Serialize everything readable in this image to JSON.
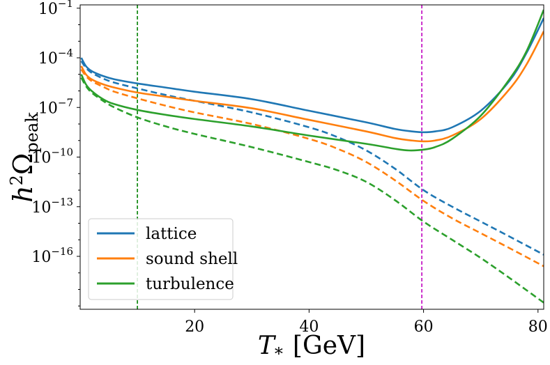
{
  "chart_data": {
    "type": "line",
    "title": "",
    "xlabel": {
      "main": "T",
      "sub": "*",
      "unit": "[GeV]"
    },
    "ylabel": {
      "main": "h",
      "sup": "2",
      "greek": "Ω",
      "sub": "peak"
    },
    "xlim": [
      0,
      81
    ],
    "ylog_range": [
      -19.2,
      -0.8
    ],
    "xticks": [
      20,
      40,
      60,
      80
    ],
    "xtick_labels": [
      "20",
      "40",
      "60",
      "80"
    ],
    "yticks": [
      {
        "base": "10",
        "exp": "−1",
        "value": -1
      },
      {
        "base": "10",
        "exp": "−4",
        "value": -4
      },
      {
        "base": "10",
        "exp": "−7",
        "value": -7
      },
      {
        "base": "10",
        "exp": "−10",
        "value": -10
      },
      {
        "base": "10",
        "exp": "−13",
        "value": -13
      },
      {
        "base": "10",
        "exp": "−16",
        "value": -16
      }
    ],
    "vlines": [
      {
        "x": 10,
        "color": "#008000",
        "style": "dashed"
      },
      {
        "x": 59.7,
        "color": "#bf00bf",
        "style": "dashed"
      }
    ],
    "legend": {
      "position": "bottom-left",
      "entries": [
        "lattice",
        "sound shell",
        "turbulence"
      ]
    },
    "series": [
      {
        "name": "lattice",
        "color": "#1f77b4",
        "style": "solid",
        "x": [
          0.2,
          1,
          2,
          4,
          6,
          10,
          15,
          20,
          30,
          40,
          50,
          55,
          58,
          60,
          62,
          65,
          70,
          75,
          78,
          81
        ],
        "log10y": [
          -4.0,
          -4.5,
          -4.8,
          -5.1,
          -5.3,
          -5.55,
          -5.8,
          -6.05,
          -6.5,
          -7.2,
          -7.9,
          -8.3,
          -8.45,
          -8.5,
          -8.45,
          -8.2,
          -7.2,
          -5.4,
          -3.7,
          -1.6
        ]
      },
      {
        "name": "sound shell",
        "color": "#ff7f0e",
        "style": "solid",
        "x": [
          0.2,
          1,
          2,
          4,
          6,
          10,
          15,
          20,
          30,
          40,
          50,
          55,
          58,
          60,
          62,
          65,
          70,
          75,
          78,
          81
        ],
        "log10y": [
          -4.5,
          -5.0,
          -5.3,
          -5.6,
          -5.8,
          -6.1,
          -6.35,
          -6.6,
          -7.05,
          -7.75,
          -8.45,
          -8.85,
          -9.0,
          -9.05,
          -9.0,
          -8.7,
          -7.7,
          -5.9,
          -4.4,
          -2.4
        ]
      },
      {
        "name": "turbulence",
        "color": "#2ca02c",
        "style": "solid",
        "x": [
          0.2,
          1,
          2,
          4,
          6,
          10,
          15,
          20,
          30,
          40,
          50,
          55,
          57.5,
          60,
          62,
          65,
          70,
          75,
          78,
          81
        ],
        "log10y": [
          -5.0,
          -5.6,
          -6.0,
          -6.5,
          -6.8,
          -7.15,
          -7.45,
          -7.7,
          -8.15,
          -8.7,
          -9.2,
          -9.5,
          -9.6,
          -9.55,
          -9.4,
          -8.9,
          -7.5,
          -5.3,
          -3.6,
          -1.1
        ]
      },
      {
        "name": "lattice (dashed)",
        "color": "#1f77b4",
        "style": "dashed",
        "x": [
          0.2,
          1,
          2,
          4,
          6,
          10,
          15,
          20,
          30,
          40,
          45,
          50,
          55,
          60,
          65,
          70,
          75,
          81
        ],
        "log10y": [
          -4.2,
          -4.6,
          -4.9,
          -5.25,
          -5.5,
          -5.85,
          -6.25,
          -6.6,
          -7.3,
          -8.2,
          -8.8,
          -9.6,
          -10.7,
          -12.0,
          -13.0,
          -13.9,
          -14.8,
          -15.9
        ]
      },
      {
        "name": "sound shell (dashed)",
        "color": "#ff7f0e",
        "style": "dashed",
        "x": [
          0.2,
          1,
          2,
          4,
          6,
          10,
          15,
          20,
          30,
          40,
          45,
          50,
          55,
          60,
          65,
          70,
          75,
          81
        ],
        "log10y": [
          -4.7,
          -5.1,
          -5.4,
          -5.75,
          -6.05,
          -6.45,
          -6.9,
          -7.3,
          -8.0,
          -8.9,
          -9.5,
          -10.3,
          -11.4,
          -12.65,
          -13.7,
          -14.6,
          -15.5,
          -16.6
        ]
      },
      {
        "name": "turbulence (dashed)",
        "color": "#2ca02c",
        "style": "dashed",
        "x": [
          0.2,
          1,
          2,
          4,
          6,
          10,
          15,
          20,
          30,
          40,
          45,
          50,
          55,
          60,
          65,
          70,
          75,
          81
        ],
        "log10y": [
          -5.2,
          -5.7,
          -6.1,
          -6.6,
          -7.0,
          -7.6,
          -8.15,
          -8.6,
          -9.4,
          -10.3,
          -10.8,
          -11.5,
          -12.6,
          -13.9,
          -15.0,
          -16.1,
          -17.3,
          -18.8
        ]
      }
    ]
  }
}
